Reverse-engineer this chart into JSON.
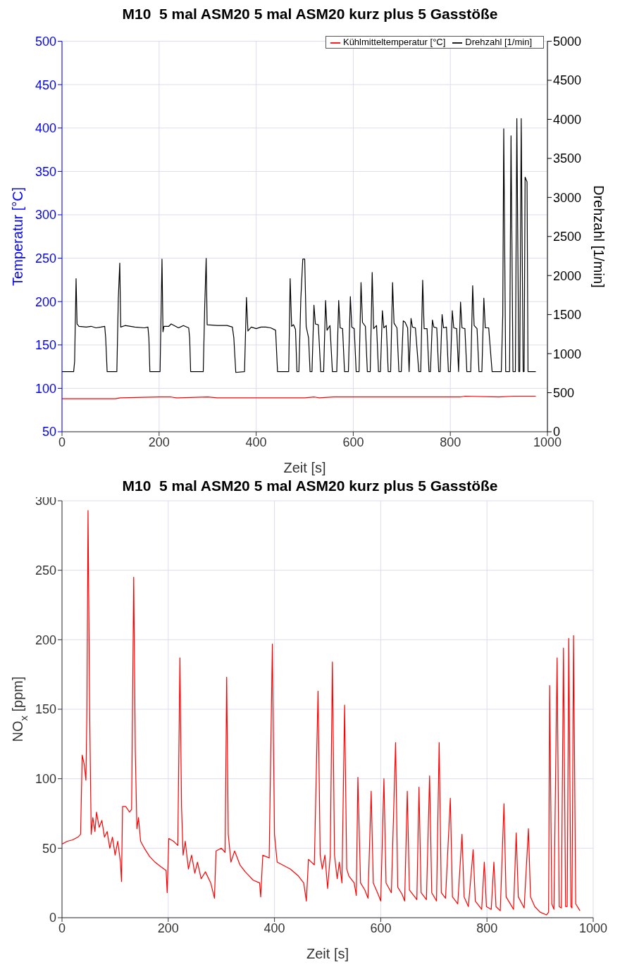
{
  "chart_data": [
    {
      "type": "line",
      "title": "M10  5 mal ASM20 5 mal ASM20 kurz plus 5 Gasstöße",
      "xlabel": "Zeit [s]",
      "ylabel": "Temperatur [°C]",
      "y2label": "Drehzahl [1/min]",
      "xlim": [
        0,
        1000
      ],
      "xticks": [
        0,
        200,
        400,
        600,
        800,
        1000
      ],
      "ylim": [
        50,
        500
      ],
      "yticks": [
        50,
        100,
        150,
        200,
        250,
        300,
        350,
        400,
        450,
        500
      ],
      "y2lim": [
        0,
        5000
      ],
      "y2ticks": [
        0,
        500,
        1000,
        1500,
        2000,
        2500,
        3000,
        3500,
        4000,
        4500,
        5000
      ],
      "grid": true,
      "legend": "top right",
      "series": [
        {
          "name": "Kühlmitteltemperatur [°C]",
          "color": "#ff0000",
          "axis": "y",
          "x": [
            0,
            60,
            110,
            120,
            200,
            225,
            235,
            300,
            320,
            380,
            400,
            500,
            520,
            530,
            560,
            600,
            820,
            830,
            900,
            930,
            976
          ],
          "values": [
            88,
            88,
            88,
            89,
            90,
            90,
            89,
            90,
            89,
            89,
            89,
            89,
            90,
            89,
            90,
            90,
            90,
            91,
            90,
            91,
            91
          ]
        },
        {
          "name": "Drehzahl [1/min]",
          "color": "#000000",
          "axis": "y2",
          "x": [
            0,
            24,
            26,
            29,
            31,
            35,
            50,
            60,
            70,
            80,
            88,
            90,
            93,
            113,
            116,
            119,
            121,
            130,
            150,
            170,
            177,
            179,
            181,
            202,
            206,
            208,
            210,
            220,
            225,
            240,
            250,
            261,
            263,
            265,
            291,
            294,
            297,
            299,
            320,
            340,
            351,
            354,
            358,
            376,
            380,
            383,
            390,
            400,
            410,
            420,
            430,
            440,
            444,
            467,
            470,
            473,
            477,
            481,
            484,
            488,
            492,
            496,
            500,
            503,
            508,
            511,
            515,
            519,
            522,
            528,
            533,
            539,
            543,
            546,
            552,
            557,
            566,
            570,
            573,
            578,
            582,
            590,
            594,
            597,
            602,
            606,
            612,
            616,
            619,
            625,
            629,
            635,
            639,
            642,
            648,
            652,
            656,
            660,
            663,
            668,
            672,
            677,
            681,
            684,
            690,
            694,
            699,
            703,
            707,
            712,
            715,
            719,
            722,
            728,
            735,
            739,
            743,
            746,
            752,
            756,
            759,
            763,
            766,
            772,
            776,
            779,
            783,
            786,
            792,
            796,
            800,
            804,
            807,
            813,
            817,
            821,
            824,
            830,
            834,
            842,
            846,
            849,
            855,
            859,
            865,
            869,
            872,
            879,
            886,
            905,
            908,
            910,
            914,
            922,
            925,
            929,
            934,
            937,
            941,
            943,
            946,
            950,
            952,
            954,
            958,
            960,
            976
          ],
          "values": [
            770,
            770,
            900,
            1960,
            1380,
            1350,
            1340,
            1350,
            1330,
            1340,
            1350,
            1200,
            770,
            770,
            1700,
            2160,
            1340,
            1360,
            1340,
            1330,
            1340,
            1200,
            770,
            770,
            2210,
            1280,
            1350,
            1350,
            1380,
            1330,
            1360,
            1330,
            1200,
            770,
            770,
            1600,
            2220,
            1370,
            1360,
            1360,
            1340,
            1200,
            760,
            770,
            1720,
            1290,
            1340,
            1320,
            1340,
            1340,
            1330,
            1300,
            770,
            770,
            1960,
            1350,
            1370,
            1310,
            770,
            770,
            1700,
            2210,
            2210,
            1350,
            1200,
            770,
            770,
            1620,
            1380,
            1370,
            770,
            770,
            1680,
            1300,
            1360,
            770,
            770,
            1680,
            1330,
            1320,
            770,
            770,
            1730,
            1340,
            1320,
            770,
            770,
            1910,
            1400,
            1350,
            770,
            770,
            2040,
            1320,
            1360,
            770,
            770,
            1550,
            1330,
            1360,
            770,
            770,
            1910,
            1390,
            1330,
            770,
            770,
            1420,
            1400,
            1330,
            770,
            1450,
            1340,
            1330,
            770,
            770,
            1940,
            1320,
            1320,
            770,
            770,
            1430,
            1340,
            1330,
            770,
            770,
            1500,
            1330,
            1340,
            770,
            770,
            1550,
            1330,
            1320,
            770,
            1660,
            1330,
            1320,
            770,
            770,
            1870,
            1360,
            1320,
            770,
            770,
            1710,
            1330,
            1330,
            770,
            770,
            1500,
            3880,
            770,
            770,
            3790,
            770,
            770,
            4010,
            770,
            770,
            4010,
            770,
            770,
            3260,
            3200,
            770,
            770
          ]
        }
      ]
    },
    {
      "type": "line",
      "title": "M10  5 mal ASM20 5 mal ASM20 kurz plus 5 Gasstöße",
      "xlabel": "Zeit [s]",
      "ylabel": "NO$_{x}$ [ppm]",
      "xlim": [
        0,
        1000
      ],
      "xticks": [
        0,
        200,
        400,
        600,
        800,
        1000
      ],
      "ylim": [
        0,
        300
      ],
      "yticks": [
        0,
        50,
        100,
        150,
        200,
        250,
        300
      ],
      "grid": true,
      "series": [
        {
          "color": "#ff0000",
          "x": [
            0,
            10,
            20,
            30,
            35,
            38,
            42,
            45,
            47,
            49,
            52,
            55,
            58,
            62,
            65,
            70,
            75,
            80,
            85,
            90,
            95,
            100,
            105,
            110,
            112,
            114,
            120,
            127,
            131,
            135,
            138,
            141,
            144,
            148,
            155,
            165,
            175,
            185,
            196,
            198,
            201,
            210,
            218,
            222,
            225,
            228,
            232,
            238,
            244,
            250,
            255,
            262,
            270,
            280,
            287,
            290,
            300,
            307,
            310,
            313,
            318,
            325,
            335,
            345,
            360,
            372,
            374,
            378,
            390,
            396,
            400,
            405,
            415,
            430,
            445,
            455,
            460,
            464,
            475,
            482,
            486,
            490,
            495,
            500,
            505,
            509,
            513,
            518,
            522,
            527,
            532,
            536,
            540,
            550,
            554,
            557,
            562,
            570,
            576,
            582,
            586,
            595,
            600,
            606,
            610,
            620,
            628,
            632,
            640,
            645,
            650,
            654,
            664,
            668,
            672,
            676,
            686,
            692,
            696,
            705,
            710,
            714,
            722,
            731,
            735,
            745,
            753,
            757,
            765,
            774,
            778,
            790,
            795,
            799,
            808,
            813,
            817,
            825,
            832,
            836,
            850,
            855,
            859,
            870,
            878,
            882,
            890,
            900,
            912,
            916,
            918,
            922,
            926,
            932,
            936,
            940,
            944,
            948,
            951,
            954,
            958,
            960,
            963,
            967,
            975
          ],
          "values": [
            53,
            55,
            56,
            58,
            60,
            117,
            110,
            99,
            150,
            293,
            150,
            60,
            72,
            62,
            76,
            65,
            70,
            58,
            62,
            50,
            58,
            45,
            55,
            40,
            26,
            80,
            80,
            76,
            78,
            245,
            120,
            64,
            72,
            55,
            50,
            44,
            40,
            37,
            34,
            18,
            57,
            55,
            52,
            187,
            80,
            45,
            55,
            35,
            45,
            32,
            40,
            28,
            33,
            25,
            14,
            48,
            50,
            47,
            173,
            60,
            40,
            48,
            38,
            33,
            27,
            25,
            15,
            45,
            43,
            197,
            60,
            40,
            38,
            35,
            30,
            25,
            12,
            42,
            38,
            163,
            45,
            35,
            45,
            21,
            45,
            184,
            45,
            28,
            40,
            25,
            153,
            35,
            30,
            25,
            16,
            101,
            25,
            20,
            14,
            91,
            25,
            17,
            12,
            100,
            25,
            18,
            126,
            22,
            17,
            12,
            91,
            20,
            15,
            13,
            94,
            18,
            13,
            102,
            18,
            12,
            126,
            18,
            14,
            86,
            15,
            10,
            60,
            15,
            8,
            49,
            12,
            6,
            40,
            8,
            6,
            40,
            8,
            5,
            82,
            15,
            6,
            61,
            15,
            7,
            64,
            15,
            8,
            4,
            2,
            4,
            167,
            10,
            6,
            187,
            8,
            7,
            194,
            8,
            8,
            201,
            8,
            7,
            203,
            10,
            5
          ]
        }
      ]
    }
  ]
}
